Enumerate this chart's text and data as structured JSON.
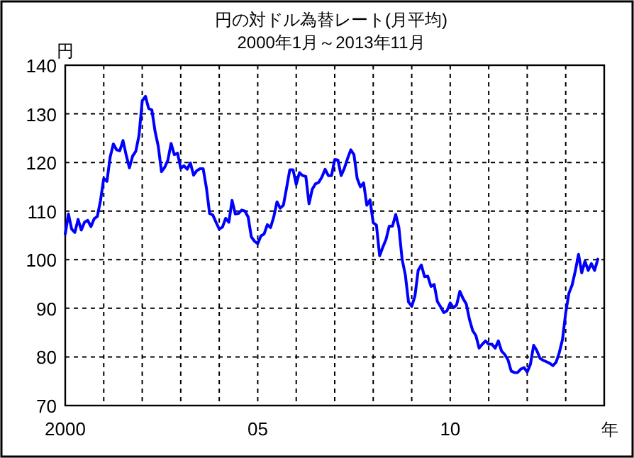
{
  "chart_data": {
    "type": "line",
    "title": "円の対ドル為替レート(月平均)",
    "subtitle": "2000年1月～2013年11月",
    "ylabel": "円",
    "xlabel": "年",
    "x": [
      "2000-01",
      "2000-02",
      "2000-03",
      "2000-04",
      "2000-05",
      "2000-06",
      "2000-07",
      "2000-08",
      "2000-09",
      "2000-10",
      "2000-11",
      "2000-12",
      "2001-01",
      "2001-02",
      "2001-03",
      "2001-04",
      "2001-05",
      "2001-06",
      "2001-07",
      "2001-08",
      "2001-09",
      "2001-10",
      "2001-11",
      "2001-12",
      "2002-01",
      "2002-02",
      "2002-03",
      "2002-04",
      "2002-05",
      "2002-06",
      "2002-07",
      "2002-08",
      "2002-09",
      "2002-10",
      "2002-11",
      "2002-12",
      "2003-01",
      "2003-02",
      "2003-03",
      "2003-04",
      "2003-05",
      "2003-06",
      "2003-07",
      "2003-08",
      "2003-09",
      "2003-10",
      "2003-11",
      "2003-12",
      "2004-01",
      "2004-02",
      "2004-03",
      "2004-04",
      "2004-05",
      "2004-06",
      "2004-07",
      "2004-08",
      "2004-09",
      "2004-10",
      "2004-11",
      "2004-12",
      "2005-01",
      "2005-02",
      "2005-03",
      "2005-04",
      "2005-05",
      "2005-06",
      "2005-07",
      "2005-08",
      "2005-09",
      "2005-10",
      "2005-11",
      "2005-12",
      "2006-01",
      "2006-02",
      "2006-03",
      "2006-04",
      "2006-05",
      "2006-06",
      "2006-07",
      "2006-08",
      "2006-09",
      "2006-10",
      "2006-11",
      "2006-12",
      "2007-01",
      "2007-02",
      "2007-03",
      "2007-04",
      "2007-05",
      "2007-06",
      "2007-07",
      "2007-08",
      "2007-09",
      "2007-10",
      "2007-11",
      "2007-12",
      "2008-01",
      "2008-02",
      "2008-03",
      "2008-04",
      "2008-05",
      "2008-06",
      "2008-07",
      "2008-08",
      "2008-09",
      "2008-10",
      "2008-11",
      "2008-12",
      "2009-01",
      "2009-02",
      "2009-03",
      "2009-04",
      "2009-05",
      "2009-06",
      "2009-07",
      "2009-08",
      "2009-09",
      "2009-10",
      "2009-11",
      "2009-12",
      "2010-01",
      "2010-02",
      "2010-03",
      "2010-04",
      "2010-05",
      "2010-06",
      "2010-07",
      "2010-08",
      "2010-09",
      "2010-10",
      "2010-11",
      "2010-12",
      "2011-01",
      "2011-02",
      "2011-03",
      "2011-04",
      "2011-05",
      "2011-06",
      "2011-07",
      "2011-08",
      "2011-09",
      "2011-10",
      "2011-11",
      "2011-12",
      "2012-01",
      "2012-02",
      "2012-03",
      "2012-04",
      "2012-05",
      "2012-06",
      "2012-07",
      "2012-08",
      "2012-09",
      "2012-10",
      "2012-11",
      "2012-12",
      "2013-01",
      "2013-02",
      "2013-03",
      "2013-04",
      "2013-05",
      "2013-06",
      "2013-07",
      "2013-08",
      "2013-09",
      "2013-10",
      "2013-11"
    ],
    "series": [
      {
        "color": "#0000ff",
        "values": [
          105.3,
          109.4,
          106.3,
          105.6,
          108.3,
          106.1,
          107.7,
          108.1,
          106.8,
          108.4,
          108.9,
          112.2,
          116.7,
          116.1,
          121.1,
          123.8,
          122.6,
          122.4,
          124.5,
          121.5,
          118.9,
          121.3,
          122.3,
          125.6,
          132.7,
          133.6,
          131.1,
          130.8,
          126.4,
          123.3,
          118.1,
          119.0,
          120.5,
          123.9,
          121.6,
          121.9,
          118.8,
          119.3,
          118.6,
          119.9,
          117.4,
          118.3,
          118.7,
          118.7,
          114.8,
          109.5,
          109.2,
          107.7,
          106.3,
          106.7,
          108.5,
          107.7,
          112.2,
          109.4,
          109.5,
          110.2,
          110.0,
          108.8,
          104.7,
          103.8,
          103.3,
          104.9,
          105.3,
          107.2,
          106.6,
          108.8,
          111.9,
          110.6,
          111.2,
          114.8,
          118.5,
          118.5,
          115.5,
          117.9,
          117.3,
          117.1,
          111.5,
          114.5,
          115.6,
          115.9,
          117.0,
          118.6,
          117.3,
          117.3,
          120.6,
          120.5,
          117.3,
          118.8,
          120.8,
          122.6,
          121.6,
          116.7,
          115.0,
          115.8,
          111.2,
          112.3,
          107.6,
          107.1,
          100.8,
          102.6,
          104.2,
          106.9,
          106.9,
          109.3,
          106.6,
          100.1,
          96.9,
          91.3,
          90.4,
          92.5,
          97.8,
          98.9,
          96.5,
          96.6,
          94.5,
          94.9,
          91.4,
          90.3,
          89.1,
          89.5,
          91.1,
          90.1,
          90.7,
          93.5,
          92.0,
          90.9,
          87.7,
          85.4,
          84.4,
          81.8,
          82.6,
          83.3,
          82.6,
          82.6,
          81.8,
          83.3,
          81.2,
          80.5,
          79.4,
          77.1,
          76.8,
          76.8,
          77.5,
          77.8,
          76.9,
          78.5,
          82.4,
          81.3,
          79.7,
          79.3,
          79.0,
          78.7,
          78.2,
          78.9,
          80.9,
          83.6,
          89.1,
          93.1,
          94.8,
          97.7,
          101.1,
          97.3,
          99.7,
          97.8,
          99.2,
          97.8,
          100.1
        ]
      }
    ],
    "xlim": [
      "2000",
      "2014"
    ],
    "xticks": [
      {
        "value": "2000",
        "label": "2000"
      },
      {
        "value": "2001",
        "label": null
      },
      {
        "value": "2002",
        "label": null
      },
      {
        "value": "2003",
        "label": null
      },
      {
        "value": "2004",
        "label": null
      },
      {
        "value": "2005",
        "label": "05"
      },
      {
        "value": "2006",
        "label": null
      },
      {
        "value": "2007",
        "label": null
      },
      {
        "value": "2008",
        "label": null
      },
      {
        "value": "2009",
        "label": null
      },
      {
        "value": "2010",
        "label": "10"
      },
      {
        "value": "2011",
        "label": null
      },
      {
        "value": "2012",
        "label": null
      },
      {
        "value": "2013",
        "label": null
      }
    ],
    "ylim": [
      70,
      140
    ],
    "yticks": [
      70,
      80,
      90,
      100,
      110,
      120,
      130,
      140
    ],
    "grid": true,
    "line_style": "solid",
    "marker": "none"
  }
}
